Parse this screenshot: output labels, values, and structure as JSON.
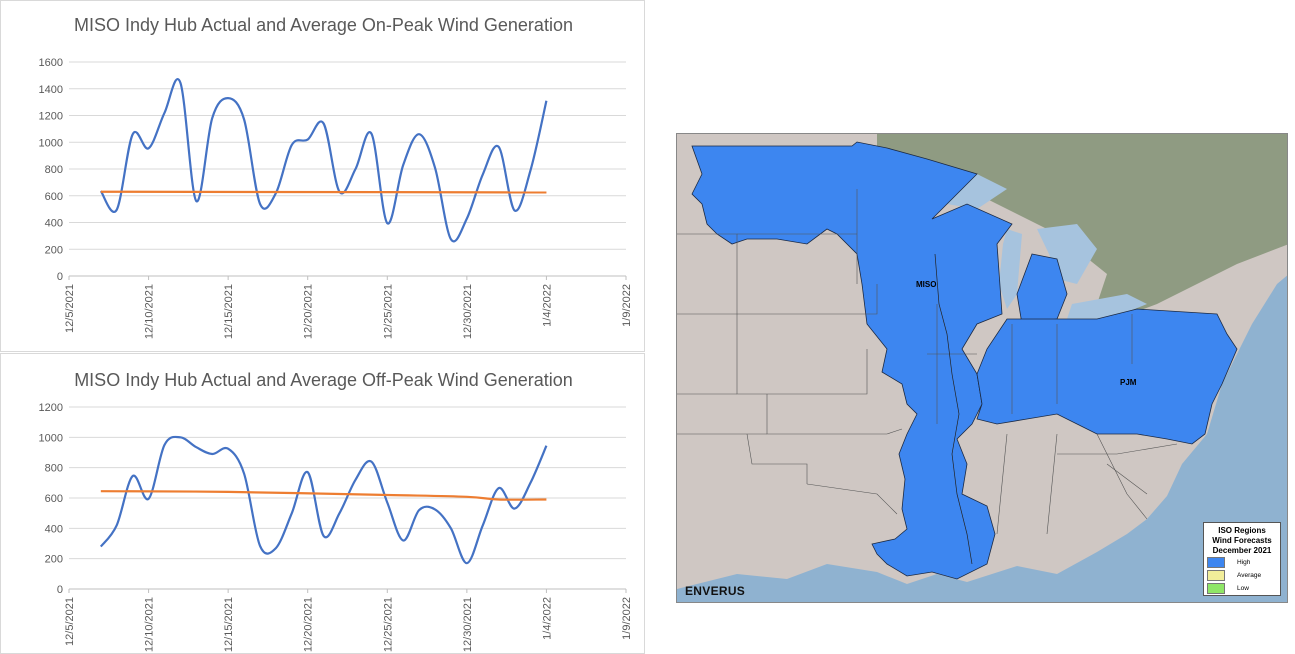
{
  "chart_data": [
    {
      "type": "line",
      "title": "MISO Indy Hub Actual and Average On-Peak Wind Generation",
      "xlabel": "",
      "ylabel": "",
      "x_ticks": [
        "12/5/2021",
        "12/10/2021",
        "12/15/2021",
        "12/20/2021",
        "12/25/2021",
        "12/30/2021",
        "1/4/2022",
        "1/9/2022"
      ],
      "y_ticks": [
        0,
        200,
        400,
        600,
        800,
        1000,
        1200,
        1400,
        1600
      ],
      "ylim": [
        0,
        1600
      ],
      "xlim": [
        "2021-12-05",
        "2022-01-09"
      ],
      "grid": "horizontal",
      "legend": "none",
      "series": [
        {
          "color": "#4472c4",
          "x": [
            "2021-12-07",
            "2021-12-08",
            "2021-12-09",
            "2021-12-10",
            "2021-12-11",
            "2021-12-12",
            "2021-12-13",
            "2021-12-14",
            "2021-12-15",
            "2021-12-16",
            "2021-12-17",
            "2021-12-18",
            "2021-12-19",
            "2021-12-20",
            "2021-12-21",
            "2021-12-22",
            "2021-12-23",
            "2021-12-24",
            "2021-12-25",
            "2021-12-26",
            "2021-12-27",
            "2021-12-28",
            "2021-12-29",
            "2021-12-30",
            "2021-12-31",
            "2022-01-01",
            "2022-01-02",
            "2022-01-03",
            "2022-01-04"
          ],
          "y": [
            635,
            495,
            1060,
            955,
            1220,
            1445,
            560,
            1180,
            1330,
            1170,
            540,
            620,
            980,
            1020,
            1140,
            630,
            800,
            1065,
            395,
            830,
            1060,
            810,
            275,
            430,
            760,
            965,
            490,
            790,
            1310
          ]
        },
        {
          "color": "#ed7d31",
          "x": [
            "2021-12-07",
            "2022-01-04"
          ],
          "y": [
            630,
            625
          ]
        }
      ]
    },
    {
      "type": "line",
      "title": "MISO Indy Hub Actual and Average Off-Peak Wind Generation",
      "xlabel": "",
      "ylabel": "",
      "x_ticks": [
        "12/5/2021",
        "12/10/2021",
        "12/15/2021",
        "12/20/2021",
        "12/25/2021",
        "12/30/2021",
        "1/4/2022",
        "1/9/2022"
      ],
      "y_ticks": [
        0,
        200,
        400,
        600,
        800,
        1000,
        1200
      ],
      "ylim": [
        0,
        1200
      ],
      "xlim": [
        "2021-12-05",
        "2022-01-09"
      ],
      "grid": "horizontal",
      "legend": "none",
      "series": [
        {
          "color": "#4472c4",
          "x": [
            "2021-12-07",
            "2021-12-08",
            "2021-12-09",
            "2021-12-10",
            "2021-12-11",
            "2021-12-12",
            "2021-12-13",
            "2021-12-14",
            "2021-12-15",
            "2021-12-16",
            "2021-12-17",
            "2021-12-18",
            "2021-12-19",
            "2021-12-20",
            "2021-12-21",
            "2021-12-22",
            "2021-12-23",
            "2021-12-24",
            "2021-12-25",
            "2021-12-26",
            "2021-12-27",
            "2021-12-28",
            "2021-12-29",
            "2021-12-30",
            "2021-12-31",
            "2022-01-01",
            "2022-01-02",
            "2022-01-03",
            "2022-01-04"
          ],
          "y": [
            280,
            420,
            745,
            595,
            950,
            1000,
            935,
            890,
            925,
            760,
            285,
            270,
            500,
            770,
            350,
            500,
            720,
            840,
            570,
            320,
            520,
            525,
            400,
            170,
            420,
            665,
            530,
            700,
            945
          ]
        },
        {
          "color": "#ed7d31",
          "x": [
            "2021-12-07",
            "2021-12-15",
            "2021-12-25",
            "2021-12-30",
            "2022-01-01",
            "2022-01-04"
          ],
          "y": [
            645,
            640,
            620,
            608,
            590,
            590
          ]
        }
      ]
    }
  ],
  "map": {
    "labels": {
      "miso": "MISO",
      "pjm": "PJM"
    },
    "legend": {
      "title_lines": [
        "ISO Regions",
        "Wind Forecasts",
        "December 2021"
      ],
      "items": [
        {
          "label": "High",
          "color": "#3d86f0"
        },
        {
          "label": "Average",
          "color": "#f2ee9a"
        },
        {
          "label": "Low",
          "color": "#8fe667"
        }
      ]
    },
    "brand": "ENVERUS",
    "colors": {
      "land": "#cfc7c3",
      "water": "#8fb2d0",
      "canada": "#8f9b82",
      "region": "#3d86f0"
    }
  }
}
